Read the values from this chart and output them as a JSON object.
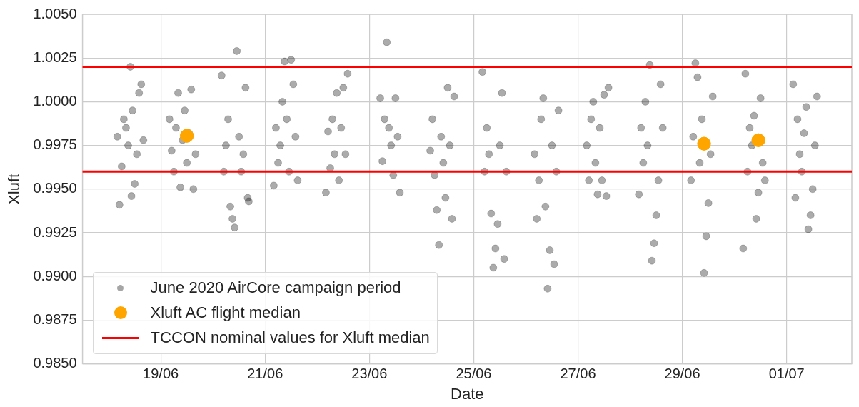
{
  "chart_data": {
    "type": "scatter",
    "xlabel": "Date",
    "ylabel": "Xluft",
    "xlim": [
      "2020-06-17T12:00",
      "2020-07-02T06:00"
    ],
    "xticks": [
      {
        "value": "2020-06-19",
        "label": "19/06"
      },
      {
        "value": "2020-06-21",
        "label": "21/06"
      },
      {
        "value": "2020-06-23",
        "label": "23/06"
      },
      {
        "value": "2020-06-25",
        "label": "25/06"
      },
      {
        "value": "2020-06-27",
        "label": "27/06"
      },
      {
        "value": "2020-06-29",
        "label": "29/06"
      },
      {
        "value": "2020-07-01",
        "label": "01/07"
      }
    ],
    "ylim": [
      0.985,
      1.005
    ],
    "yticks": [
      {
        "value": 0.985,
        "label": "0.9850"
      },
      {
        "value": 0.9875,
        "label": "0.9875"
      },
      {
        "value": 0.99,
        "label": "0.9900"
      },
      {
        "value": 0.9925,
        "label": "0.9925"
      },
      {
        "value": 0.995,
        "label": "0.9950"
      },
      {
        "value": 0.9975,
        "label": "0.9975"
      },
      {
        "value": 1.0,
        "label": "1.0000"
      },
      {
        "value": 1.0025,
        "label": "1.0025"
      },
      {
        "value": 1.005,
        "label": "1.0050"
      }
    ],
    "grid": true,
    "legend": "bottom left",
    "marker": "circle",
    "series": [
      {
        "name": "June 2020 AirCore campaign period",
        "color": "#000000",
        "x": [
          "2020-06-18T04:00",
          "2020-06-18T05:00",
          "2020-06-18T06:00",
          "2020-06-18T07:00",
          "2020-06-18T08:00",
          "2020-06-18T09:00",
          "2020-06-18T10:00",
          "2020-06-18T10:30",
          "2020-06-18T11:00",
          "2020-06-18T12:00",
          "2020-06-18T13:00",
          "2020-06-18T14:00",
          "2020-06-18T15:00",
          "2020-06-18T16:00",
          "2020-06-19T04:00",
          "2020-06-19T05:00",
          "2020-06-19T06:00",
          "2020-06-19T07:00",
          "2020-06-19T08:00",
          "2020-06-19T09:00",
          "2020-06-19T10:00",
          "2020-06-19T11:00",
          "2020-06-19T12:00",
          "2020-06-19T13:00",
          "2020-06-19T14:00",
          "2020-06-19T15:00",
          "2020-06-19T16:00",
          "2020-06-20T04:00",
          "2020-06-20T05:00",
          "2020-06-20T06:00",
          "2020-06-20T07:00",
          "2020-06-20T08:00",
          "2020-06-20T09:00",
          "2020-06-20T10:00",
          "2020-06-20T11:00",
          "2020-06-20T12:00",
          "2020-06-20T13:00",
          "2020-06-20T14:00",
          "2020-06-20T15:00",
          "2020-06-20T16:00",
          "2020-06-20T16:30",
          "2020-06-21T04:00",
          "2020-06-21T05:00",
          "2020-06-21T06:00",
          "2020-06-21T07:00",
          "2020-06-21T08:00",
          "2020-06-21T09:00",
          "2020-06-21T10:00",
          "2020-06-21T11:00",
          "2020-06-21T12:00",
          "2020-06-21T13:00",
          "2020-06-21T14:00",
          "2020-06-21T15:00",
          "2020-06-22T04:00",
          "2020-06-22T05:00",
          "2020-06-22T06:00",
          "2020-06-22T07:00",
          "2020-06-22T08:00",
          "2020-06-22T09:00",
          "2020-06-22T10:00",
          "2020-06-22T11:00",
          "2020-06-22T12:00",
          "2020-06-22T13:00",
          "2020-06-22T14:00",
          "2020-06-23T05:00",
          "2020-06-23T06:00",
          "2020-06-23T07:00",
          "2020-06-23T08:00",
          "2020-06-23T09:00",
          "2020-06-23T10:00",
          "2020-06-23T11:00",
          "2020-06-23T12:00",
          "2020-06-23T13:00",
          "2020-06-23T14:00",
          "2020-06-24T04:00",
          "2020-06-24T05:00",
          "2020-06-24T06:00",
          "2020-06-24T07:00",
          "2020-06-24T08:00",
          "2020-06-24T09:00",
          "2020-06-24T10:00",
          "2020-06-24T11:00",
          "2020-06-24T12:00",
          "2020-06-24T13:00",
          "2020-06-24T14:00",
          "2020-06-24T15:00",
          "2020-06-25T04:00",
          "2020-06-25T05:00",
          "2020-06-25T06:00",
          "2020-06-25T07:00",
          "2020-06-25T08:00",
          "2020-06-25T09:00",
          "2020-06-25T10:00",
          "2020-06-25T11:00",
          "2020-06-25T12:00",
          "2020-06-25T13:00",
          "2020-06-25T14:00",
          "2020-06-25T15:00",
          "2020-06-26T04:00",
          "2020-06-26T05:00",
          "2020-06-26T06:00",
          "2020-06-26T07:00",
          "2020-06-26T08:00",
          "2020-06-26T09:00",
          "2020-06-26T10:00",
          "2020-06-26T11:00",
          "2020-06-26T12:00",
          "2020-06-26T13:00",
          "2020-06-26T14:00",
          "2020-06-26T15:00",
          "2020-06-27T04:00",
          "2020-06-27T05:00",
          "2020-06-27T06:00",
          "2020-06-27T07:00",
          "2020-06-27T08:00",
          "2020-06-27T09:00",
          "2020-06-27T10:00",
          "2020-06-27T11:00",
          "2020-06-27T12:00",
          "2020-06-27T13:00",
          "2020-06-27T14:00",
          "2020-06-28T04:00",
          "2020-06-28T05:00",
          "2020-06-28T06:00",
          "2020-06-28T07:00",
          "2020-06-28T08:00",
          "2020-06-28T09:00",
          "2020-06-28T10:00",
          "2020-06-28T11:00",
          "2020-06-28T12:00",
          "2020-06-28T13:00",
          "2020-06-28T14:00",
          "2020-06-28T15:00",
          "2020-06-29T04:00",
          "2020-06-29T05:00",
          "2020-06-29T06:00",
          "2020-06-29T07:00",
          "2020-06-29T08:00",
          "2020-06-29T09:00",
          "2020-06-29T10:00",
          "2020-06-29T11:00",
          "2020-06-29T12:00",
          "2020-06-29T13:00",
          "2020-06-29T14:00",
          "2020-06-30T04:00",
          "2020-06-30T05:00",
          "2020-06-30T06:00",
          "2020-06-30T07:00",
          "2020-06-30T08:00",
          "2020-06-30T09:00",
          "2020-06-30T10:00",
          "2020-06-30T11:00",
          "2020-06-30T12:00",
          "2020-06-30T13:00",
          "2020-06-30T14:00",
          "2020-07-01T03:00",
          "2020-07-01T04:00",
          "2020-07-01T05:00",
          "2020-07-01T06:00",
          "2020-07-01T07:00",
          "2020-07-01T08:00",
          "2020-07-01T09:00",
          "2020-07-01T10:00",
          "2020-07-01T11:00",
          "2020-07-01T12:00",
          "2020-07-01T13:00",
          "2020-07-01T14:00"
        ],
        "values": [
          0.998,
          0.9941,
          0.9963,
          0.999,
          0.9985,
          0.9975,
          1.002,
          0.9946,
          0.9995,
          0.9953,
          0.997,
          1.0005,
          1.001,
          0.9978,
          0.999,
          0.9972,
          0.996,
          0.9985,
          1.0005,
          0.9951,
          0.9978,
          0.9995,
          0.9965,
          0.9982,
          1.0007,
          0.995,
          0.997,
          1.0015,
          0.996,
          0.9975,
          0.999,
          0.994,
          0.9933,
          0.9928,
          1.0029,
          0.998,
          0.996,
          0.997,
          1.0008,
          0.9945,
          0.9943,
          0.9952,
          0.9985,
          0.9965,
          0.9975,
          1.0,
          1.0023,
          0.999,
          0.996,
          1.0024,
          1.001,
          0.998,
          0.9955,
          0.9948,
          0.9983,
          0.9962,
          0.999,
          0.997,
          1.0005,
          0.9955,
          0.9985,
          1.0008,
          0.997,
          1.0016,
          1.0002,
          0.9966,
          0.999,
          1.0034,
          0.9985,
          0.9975,
          0.9958,
          1.0002,
          0.998,
          0.9948,
          0.9972,
          0.999,
          0.9958,
          0.9938,
          0.9918,
          0.998,
          0.9965,
          0.9945,
          1.0008,
          0.9975,
          0.9933,
          1.0003,
          1.0017,
          0.996,
          0.9985,
          0.997,
          0.9936,
          0.9905,
          0.9916,
          0.993,
          0.9975,
          1.0005,
          0.991,
          0.996,
          0.997,
          0.9933,
          0.9955,
          0.999,
          1.0002,
          0.994,
          0.9893,
          0.9915,
          0.9975,
          0.9907,
          0.996,
          0.9995,
          0.9975,
          0.9955,
          0.999,
          1.0,
          0.9965,
          0.9947,
          0.9985,
          0.9955,
          1.0004,
          0.9946,
          1.0008,
          0.9947,
          0.9985,
          0.9965,
          1.0,
          0.9975,
          1.0021,
          0.9909,
          0.9919,
          0.9935,
          0.9955,
          1.001,
          0.9985,
          0.9955,
          0.998,
          1.0022,
          1.0014,
          0.9965,
          0.999,
          0.9902,
          0.9923,
          0.9942,
          0.997,
          1.0003,
          0.9916,
          1.0016,
          0.996,
          0.9985,
          0.9975,
          0.9992,
          0.9933,
          0.9948,
          1.0002,
          0.9965,
          0.9955,
          1.001,
          0.9945,
          0.999,
          0.997,
          0.996,
          0.9982,
          0.9997,
          0.9927,
          0.9935,
          0.995,
          0.9975,
          1.0003
        ]
      },
      {
        "name": "Xluft AC flight median",
        "color": "#ffa500",
        "x": [
          "2020-06-19T12:00",
          "2020-06-29T10:00",
          "2020-06-30T11:00"
        ],
        "values": [
          0.99805,
          0.9976,
          0.9978
        ]
      }
    ],
    "ref_lines": [
      {
        "axis": "y",
        "value": 1.002,
        "label": "TCCON nominal values for Xluft median",
        "color": "#ff0000"
      },
      {
        "axis": "y",
        "value": 0.996,
        "color": "#ff0000"
      }
    ]
  }
}
